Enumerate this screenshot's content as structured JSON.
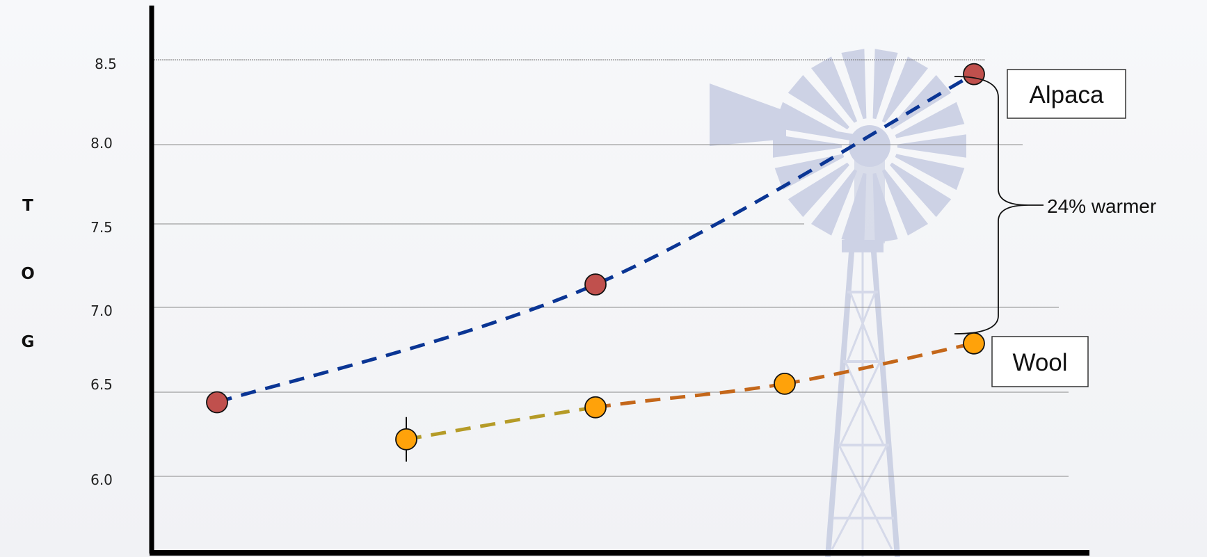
{
  "chart_data": {
    "type": "line",
    "title": "",
    "xlabel": "",
    "ylabel": "TOG",
    "ylim": [
      5.5,
      8.65
    ],
    "yticks": [
      "6.0",
      "6.5",
      "7.0",
      "7.5",
      "8.0",
      "8.5"
    ],
    "x_ticks_shown": false,
    "grid": "horizontal",
    "background": "faded windmill",
    "series": [
      {
        "name": "Alpaca",
        "x": [
          1,
          3,
          5
        ],
        "values": [
          6.44,
          7.14,
          8.39
        ],
        "line_color": "#0a3594",
        "marker_color": "#c0504d"
      },
      {
        "name": "Wool",
        "x": [
          2,
          3,
          4,
          5
        ],
        "values": [
          6.22,
          6.41,
          6.55,
          6.79
        ],
        "line_colors": [
          "#b59b27",
          "#c4671a",
          "#c4671a"
        ],
        "marker_color": "#ffa20a"
      }
    ],
    "annotations": [
      {
        "text": "24% warmer",
        "between": [
          "Alpaca",
          "Wool"
        ],
        "at_x": 5
      }
    ]
  },
  "colors": {
    "axis": "#000000",
    "grid": "#8a8a8a",
    "alpaca_line": "#0a3594",
    "alpaca_marker": "#c0504d",
    "wool_line_start": "#b59b27",
    "wool_line": "#c4671a",
    "wool_marker": "#ffa20a",
    "windmill": "#c9cfe3"
  }
}
